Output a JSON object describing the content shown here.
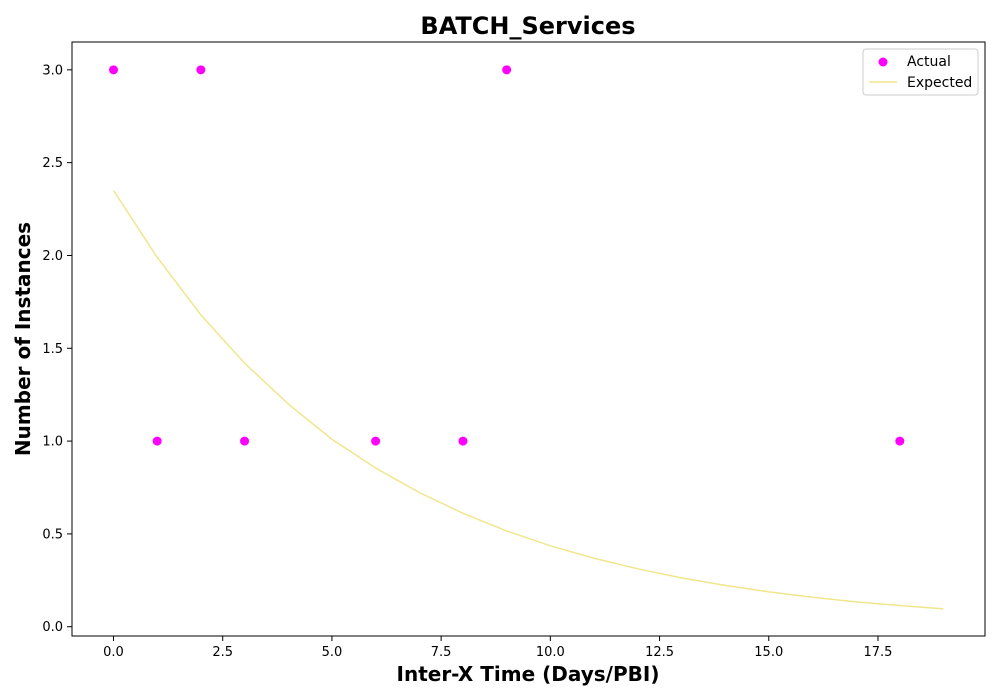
{
  "chart_data": {
    "type": "scatter",
    "title": "BATCH_Services",
    "xlabel": "Inter-X Time (Days/PBI)",
    "ylabel": "Number of Instances",
    "xlim": [
      -0.95,
      19.95
    ],
    "ylim": [
      -0.05,
      3.15
    ],
    "xticks": [
      0.0,
      2.5,
      5.0,
      7.5,
      10.0,
      12.5,
      15.0,
      17.5
    ],
    "xtick_labels": [
      "0.0",
      "2.5",
      "5.0",
      "7.5",
      "10.0",
      "12.5",
      "15.0",
      "17.5"
    ],
    "yticks": [
      0.0,
      0.5,
      1.0,
      1.5,
      2.0,
      2.5,
      3.0
    ],
    "ytick_labels": [
      "0.0",
      "0.5",
      "1.0",
      "1.5",
      "2.0",
      "2.5",
      "3.0"
    ],
    "grid": false,
    "legend_position": "top-right",
    "series": [
      {
        "name": "Actual",
        "kind": "scatter",
        "color": "#ff00ff",
        "x": [
          0,
          1,
          2,
          3,
          6,
          8,
          9,
          18
        ],
        "y": [
          3,
          1,
          3,
          1,
          1,
          1,
          3,
          1
        ]
      },
      {
        "name": "Expected",
        "kind": "line",
        "color": "#f0e68c",
        "x": [
          0,
          1,
          2,
          3,
          4,
          5,
          6,
          7,
          8,
          9,
          10,
          11,
          12,
          13,
          14,
          15,
          16,
          17,
          18,
          19
        ],
        "y": [
          2.35,
          1.99,
          1.68,
          1.42,
          1.2,
          1.01,
          0.855,
          0.723,
          0.611,
          0.516,
          0.436,
          0.369,
          0.312,
          0.263,
          0.223,
          0.188,
          0.159,
          0.134,
          0.114,
          0.096
        ]
      }
    ]
  }
}
